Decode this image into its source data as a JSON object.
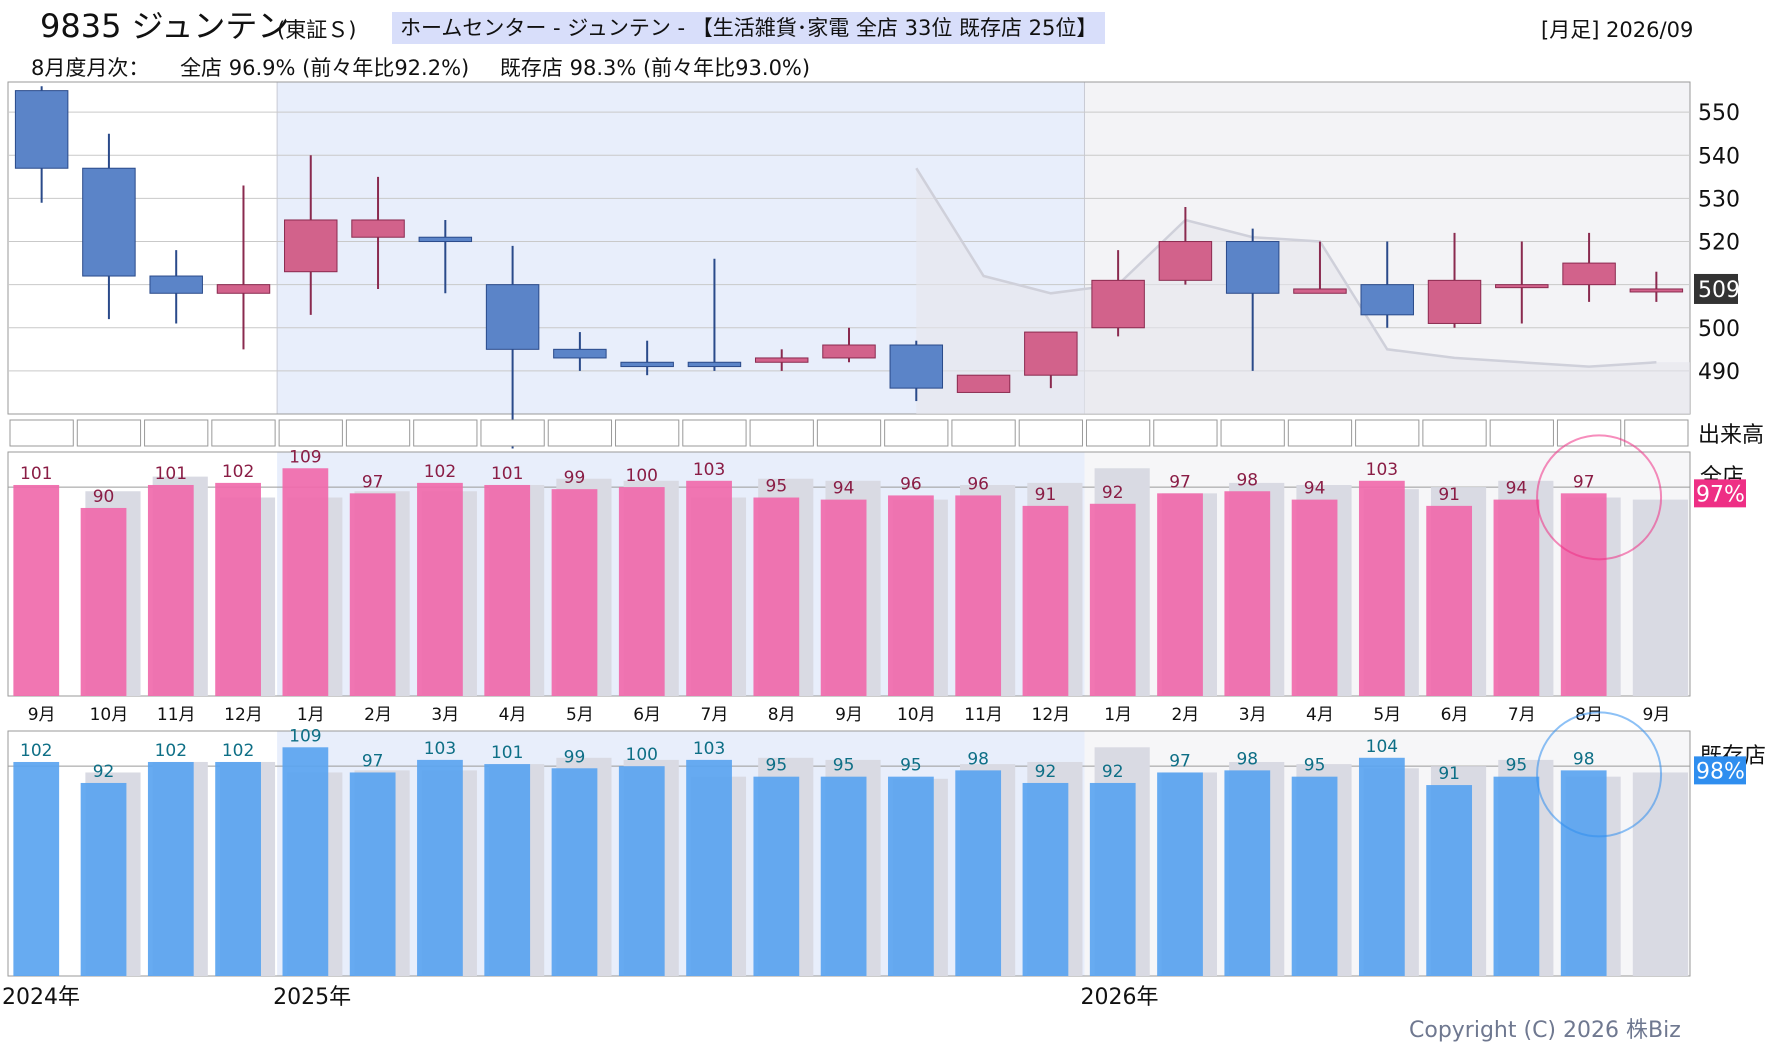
{
  "header": {
    "code_name": "9835 ジュンテン",
    "market": "(東証Ｓ)",
    "sector": "ホームセンター - ジュンテン - 【生活雑貨･家電 全店 33位 既存店 25位】",
    "period": "[月足] 2026/09",
    "summary_label": "8月度月次：",
    "summary_all": "全店 96.9% (前々年比92.2%)",
    "summary_existing": "既存店 98.3% (前々年比93.0%)"
  },
  "copyright": "Copyright (C) 2026 株Biz",
  "colors": {
    "up_candle": "#d2628b",
    "down_candle": "#5b84c8",
    "pink_bar": "#f06aab",
    "blue_bar": "#5aa4f0",
    "gray_bar": "#d9dae3",
    "shade": "#e8eefb"
  },
  "chart_data": [
    {
      "type": "candlestick",
      "name": "price",
      "months": [
        "9月",
        "10月",
        "11月",
        "12月",
        "1月",
        "2月",
        "3月",
        "4月",
        "5月",
        "6月",
        "7月",
        "8月",
        "9月",
        "10月",
        "11月",
        "12月",
        "1月",
        "2月",
        "3月",
        "4月",
        "5月",
        "6月",
        "7月",
        "8月",
        "9月"
      ],
      "ohlc": [
        [
          555,
          556,
          529,
          537
        ],
        [
          537,
          545,
          502,
          512
        ],
        [
          512,
          518,
          501,
          508
        ],
        [
          508,
          533,
          495,
          510
        ],
        [
          513,
          540,
          503,
          525
        ],
        [
          521,
          535,
          509,
          525
        ],
        [
          521,
          525,
          508,
          520
        ],
        [
          510,
          519,
          472,
          495
        ],
        [
          495,
          499,
          490,
          493
        ],
        [
          492,
          497,
          489,
          491
        ],
        [
          492,
          516,
          490,
          491
        ],
        [
          492,
          495,
          490,
          493
        ],
        [
          493,
          500,
          492,
          496
        ],
        [
          496,
          497,
          483,
          486
        ],
        [
          485,
          489,
          485,
          489
        ],
        [
          489,
          499,
          486,
          499
        ],
        [
          500,
          518,
          498,
          511
        ],
        [
          511,
          528,
          510,
          520
        ],
        [
          520,
          523,
          490,
          508
        ],
        [
          508,
          520,
          508,
          509
        ],
        [
          510,
          520,
          500,
          503
        ],
        [
          501,
          522,
          500,
          511
        ],
        [
          510,
          520,
          501,
          510
        ],
        [
          510,
          522,
          506,
          515
        ],
        [
          509,
          513,
          506,
          509
        ]
      ],
      "current_price": 509,
      "yaxis_ticks": [
        490,
        500,
        510,
        520,
        530,
        540,
        550
      ],
      "ylim": [
        480,
        557
      ],
      "trend_line": {
        "x_from_index": 13,
        "values": [
          537,
          512,
          508,
          510,
          525,
          521,
          520,
          495,
          493,
          492,
          491,
          492
        ]
      },
      "volume_label": "出来高"
    },
    {
      "type": "bar",
      "name": "全店",
      "label_pct": "97%",
      "months": [
        "9月",
        "10月",
        "11月",
        "12月",
        "1月",
        "2月",
        "3月",
        "4月",
        "5月",
        "6月",
        "7月",
        "8月",
        "9月",
        "10月",
        "11月",
        "12月",
        "1月",
        "2月",
        "3月",
        "4月",
        "5月",
        "6月",
        "7月",
        "8月",
        "9月"
      ],
      "values": [
        101,
        90,
        101,
        102,
        109,
        97,
        102,
        101,
        99,
        100,
        103,
        95,
        94,
        96,
        96,
        91,
        92,
        97,
        98,
        94,
        103,
        91,
        94,
        97,
        null
      ],
      "prev_values": [
        null,
        98,
        105,
        95,
        95,
        98,
        98,
        101,
        104,
        103,
        95,
        104,
        103,
        94,
        101,
        102,
        109,
        97,
        102,
        101,
        99,
        100,
        103,
        95,
        94
      ]
    },
    {
      "type": "bar",
      "name": "既存店",
      "label_pct": "98%",
      "values": [
        102,
        92,
        102,
        102,
        109,
        97,
        103,
        101,
        99,
        100,
        103,
        95,
        95,
        95,
        98,
        92,
        92,
        97,
        98,
        95,
        104,
        91,
        95,
        98,
        null
      ],
      "prev_values": [
        null,
        97,
        102,
        102,
        97,
        98,
        98,
        101,
        104,
        103,
        95,
        104,
        103,
        94,
        101,
        102,
        109,
        97,
        102,
        101,
        99,
        100,
        103,
        95,
        97
      ],
      "year_labels": [
        "2024年",
        "2025年",
        "2026年"
      ],
      "year_start_index": [
        0,
        4,
        16
      ]
    }
  ]
}
